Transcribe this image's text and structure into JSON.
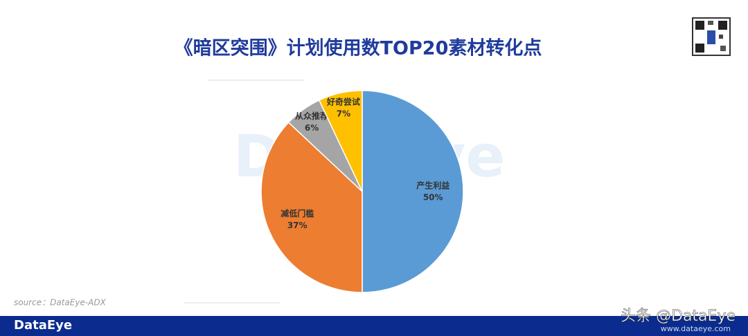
{
  "chart_data": {
    "type": "pie",
    "title": "《暗区突围》计划使用数TOP20素材转化点",
    "categories": [
      "产生利益",
      "减低门槛",
      "从众推荐",
      "好奇尝试"
    ],
    "values": [
      50,
      37,
      6,
      7
    ],
    "value_labels": [
      "50%",
      "37%",
      "6%",
      "7%"
    ],
    "colors": [
      "#5b9bd5",
      "#ed7d31",
      "#a5a5a5",
      "#ffc000"
    ],
    "watermark": "DataEye",
    "source": "source：DataEye-ADX"
  },
  "footer": {
    "brand": "DataEye",
    "account": "头条 @DataEye",
    "website": "www.dataeye.com"
  }
}
